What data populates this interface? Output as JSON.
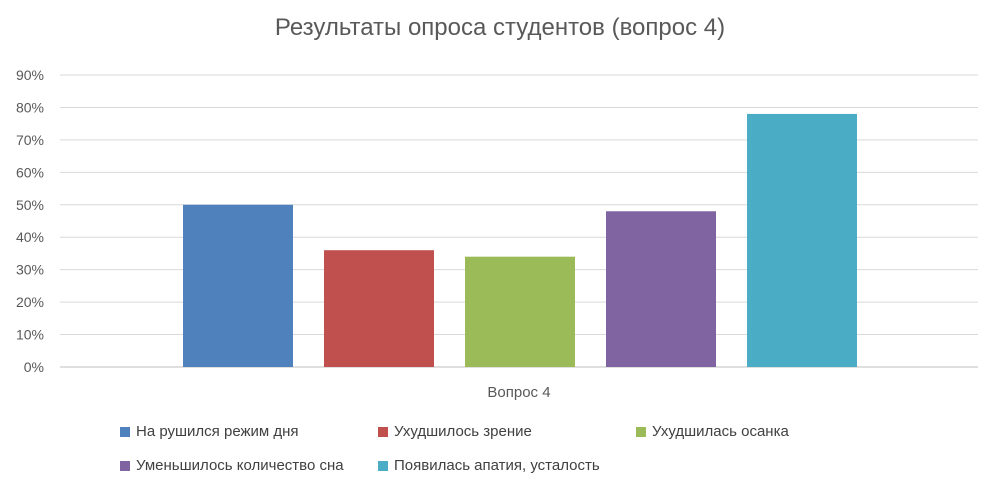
{
  "chart_data": {
    "type": "bar",
    "title": "Результаты опроса студентов (вопрос 4)",
    "categories": [
      "Вопрос 4"
    ],
    "series": [
      {
        "name": "На рушился режим дня",
        "values": [
          50
        ],
        "color": "#4f81bd"
      },
      {
        "name": "Ухудшилось зрение",
        "values": [
          36
        ],
        "color": "#c0504d"
      },
      {
        "name": "Ухудшилась осанка",
        "values": [
          34
        ],
        "color": "#9bbb59"
      },
      {
        "name": "Уменьшилось количество сна",
        "values": [
          48
        ],
        "color": "#8064a2"
      },
      {
        "name": "Появилась апатия, усталость",
        "values": [
          78
        ],
        "color": "#4bacc6"
      }
    ],
    "ylim": [
      0,
      90
    ],
    "yticks": [
      "0%",
      "10%",
      "20%",
      "30%",
      "40%",
      "50%",
      "60%",
      "70%",
      "80%",
      "90%"
    ],
    "grid": true,
    "legend_position": "bottom",
    "xlabel": "",
    "ylabel": ""
  }
}
